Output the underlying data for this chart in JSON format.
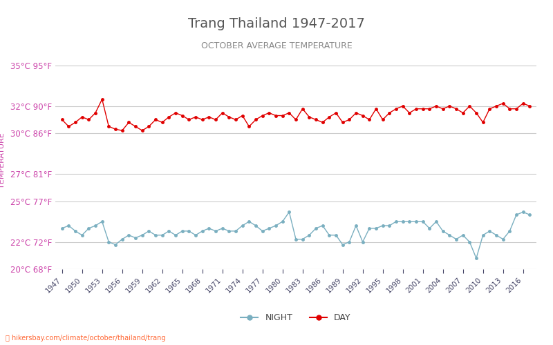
{
  "title": "Trang Thailand 1947-2017",
  "subtitle": "OCTOBER AVERAGE TEMPERATURE",
  "ylabel": "TEMPERATURE",
  "xlabel_label": "",
  "watermark": "hikersbay.com/climate/october/thailand/trang",
  "ylim": [
    20,
    36
  ],
  "yticks_c": [
    20,
    22,
    25,
    27,
    30,
    32,
    35
  ],
  "yticks_f": [
    68,
    72,
    77,
    81,
    86,
    90,
    95
  ],
  "years": [
    1947,
    1948,
    1949,
    1950,
    1951,
    1952,
    1953,
    1954,
    1955,
    1956,
    1957,
    1958,
    1959,
    1960,
    1961,
    1962,
    1963,
    1964,
    1965,
    1966,
    1967,
    1968,
    1969,
    1970,
    1971,
    1972,
    1973,
    1974,
    1975,
    1976,
    1977,
    1978,
    1979,
    1980,
    1981,
    1982,
    1983,
    1984,
    1985,
    1986,
    1987,
    1988,
    1989,
    1990,
    1991,
    1992,
    1993,
    1994,
    1995,
    1996,
    1997,
    1998,
    1999,
    2000,
    2001,
    2002,
    2003,
    2004,
    2005,
    2006,
    2007,
    2008,
    2009,
    2010,
    2011,
    2012,
    2013,
    2014,
    2015,
    2016,
    2017
  ],
  "day_temps": [
    31.0,
    30.5,
    30.8,
    31.2,
    31.0,
    31.5,
    32.5,
    30.5,
    30.3,
    30.2,
    30.8,
    30.5,
    30.2,
    30.5,
    31.0,
    30.8,
    31.2,
    31.5,
    31.3,
    31.0,
    31.2,
    31.0,
    31.2,
    31.0,
    31.5,
    31.2,
    31.0,
    31.3,
    30.5,
    31.0,
    31.3,
    31.5,
    31.3,
    31.3,
    31.5,
    31.0,
    31.8,
    31.2,
    31.0,
    30.8,
    31.2,
    31.5,
    30.8,
    31.0,
    31.5,
    31.3,
    31.0,
    31.8,
    31.0,
    31.5,
    31.8,
    32.0,
    31.5,
    31.8,
    31.8,
    31.8,
    32.0,
    31.8,
    32.0,
    31.8,
    31.5,
    32.0,
    31.5,
    30.8,
    31.8,
    32.0,
    32.2,
    31.8,
    31.8,
    32.2,
    32.0
  ],
  "night_temps": [
    23.0,
    23.2,
    22.8,
    22.5,
    23.0,
    23.2,
    23.5,
    22.0,
    21.8,
    22.2,
    22.5,
    22.3,
    22.5,
    22.8,
    22.5,
    22.5,
    22.8,
    22.5,
    22.8,
    22.8,
    22.5,
    22.8,
    23.0,
    22.8,
    23.0,
    22.8,
    22.8,
    23.2,
    23.5,
    23.2,
    22.8,
    23.0,
    23.2,
    23.5,
    24.2,
    22.2,
    22.2,
    22.5,
    23.0,
    23.2,
    22.5,
    22.5,
    21.8,
    22.0,
    23.2,
    22.0,
    23.0,
    23.0,
    23.2,
    23.2,
    23.5,
    23.5,
    23.5,
    23.5,
    23.5,
    23.0,
    23.5,
    22.8,
    22.5,
    22.2,
    22.5,
    22.0,
    20.8,
    22.5,
    22.8,
    22.5,
    22.2,
    22.8,
    24.0,
    24.2,
    24.0
  ],
  "day_color": "#e00000",
  "night_color": "#7aafc0",
  "title_color": "#555555",
  "subtitle_color": "#888888",
  "axis_label_color": "#cc44aa",
  "tick_label_color": "#cc44aa",
  "grid_color": "#cccccc",
  "legend_night_color": "#7aafc0",
  "legend_day_color": "#e00000",
  "xtick_color": "#444466",
  "watermark_color": "#ff6633",
  "background_color": "#ffffff",
  "xtick_years": [
    1947,
    1950,
    1953,
    1956,
    1959,
    1962,
    1965,
    1968,
    1971,
    1974,
    1977,
    1980,
    1983,
    1986,
    1989,
    1992,
    1995,
    1998,
    2001,
    2004,
    2007,
    2010,
    2013,
    2016
  ]
}
